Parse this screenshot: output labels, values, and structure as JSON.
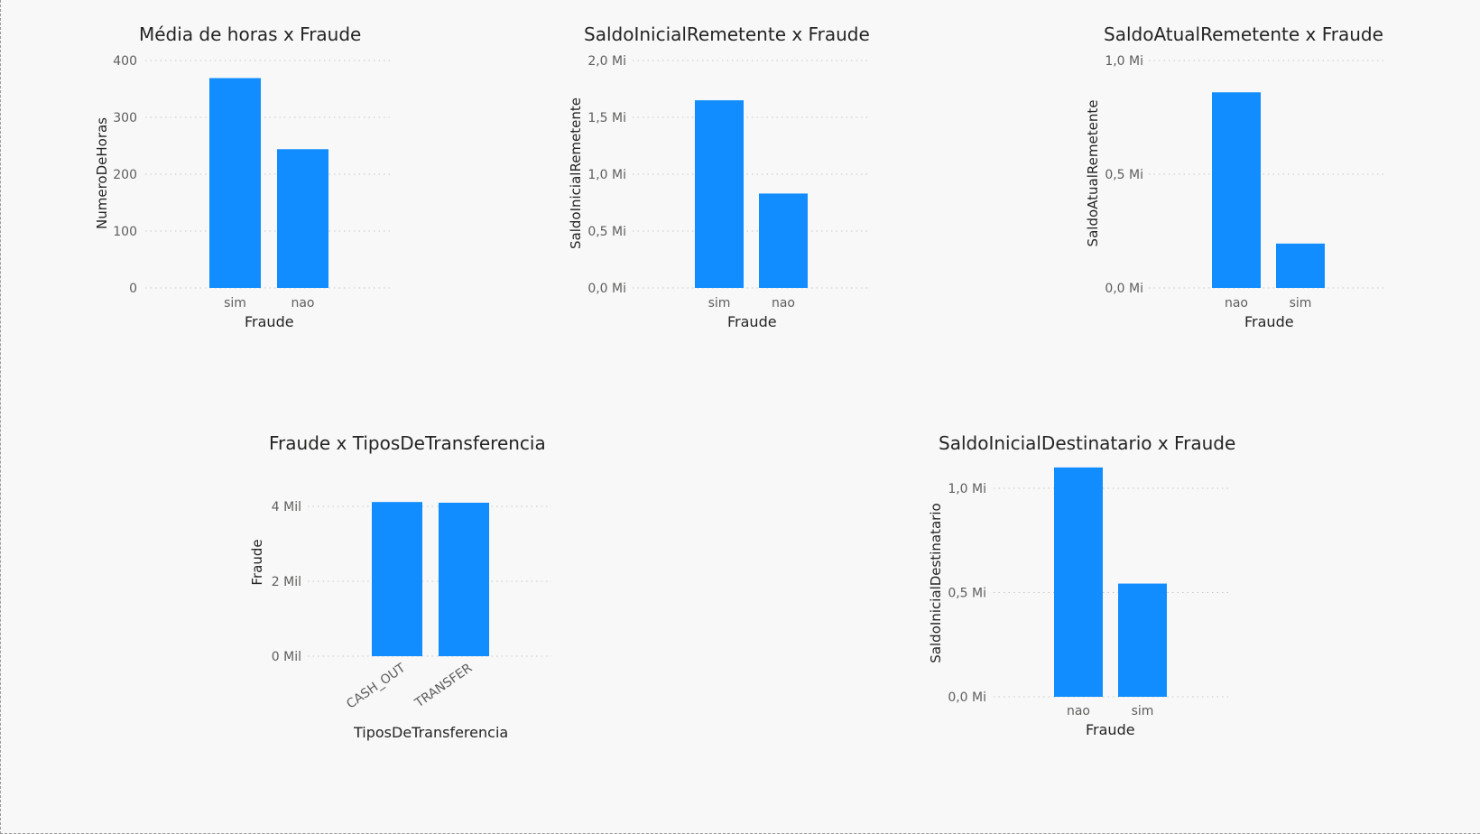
{
  "bar_color": "#118DFF",
  "chart_data": [
    {
      "type": "bar",
      "title": "Média de horas x Fraude",
      "xlabel": "Fraude",
      "ylabel": "NumeroDeHoras",
      "categories": [
        "sim",
        "nao"
      ],
      "values": [
        369,
        244
      ],
      "ylim": [
        0,
        400
      ],
      "yticks": [
        0,
        100,
        200,
        300,
        400
      ],
      "ytick_labels": [
        "0",
        "100",
        "200",
        "300",
        "400"
      ],
      "grid": true
    },
    {
      "type": "bar",
      "title": "SaldoInicialRemetente x Fraude",
      "xlabel": "Fraude",
      "ylabel": "SaldoInicialRemetente",
      "categories": [
        "sim",
        "nao"
      ],
      "values": [
        1650000,
        830000
      ],
      "ylim": [
        0,
        2000000
      ],
      "yticks": [
        0,
        500000,
        1000000,
        1500000,
        2000000
      ],
      "ytick_labels": [
        "0,0 Mi",
        "0,5 Mi",
        "1,0 Mi",
        "1,5 Mi",
        "2,0 Mi"
      ],
      "grid": true
    },
    {
      "type": "bar",
      "title": "SaldoAtualRemetente x Fraude",
      "xlabel": "Fraude",
      "ylabel": "SaldoAtualRemetente",
      "categories": [
        "nao",
        "sim"
      ],
      "values": [
        860000,
        195000
      ],
      "ylim": [
        0,
        1000000
      ],
      "yticks": [
        0,
        500000,
        1000000
      ],
      "ytick_labels": [
        "0,0 Mi",
        "0,5 Mi",
        "1,0 Mi"
      ],
      "grid": true
    },
    {
      "type": "bar",
      "title": "Fraude x TiposDeTransferencia",
      "xlabel": "TiposDeTransferencia",
      "ylabel": "Fraude",
      "categories": [
        "CASH_OUT",
        "TRANSFER"
      ],
      "values": [
        4116,
        4097
      ],
      "ylim": [
        0,
        4000
      ],
      "yticks": [
        0,
        2000,
        4000
      ],
      "ytick_labels": [
        "0 Mil",
        "2 Mil",
        "4 Mil"
      ],
      "rotate_x_labels": true,
      "grid": true
    },
    {
      "type": "bar",
      "title": "SaldoInicialDestinatario x Fraude",
      "xlabel": "Fraude",
      "ylabel": "SaldoInicialDestinatario",
      "categories": [
        "nao",
        "sim"
      ],
      "values": [
        1100000,
        543000
      ],
      "ylim": [
        0,
        1000000
      ],
      "yticks": [
        0,
        500000,
        1000000
      ],
      "ytick_labels": [
        "0,0 Mi",
        "0,5 Mi",
        "1,0 Mi"
      ],
      "grid": true
    }
  ]
}
